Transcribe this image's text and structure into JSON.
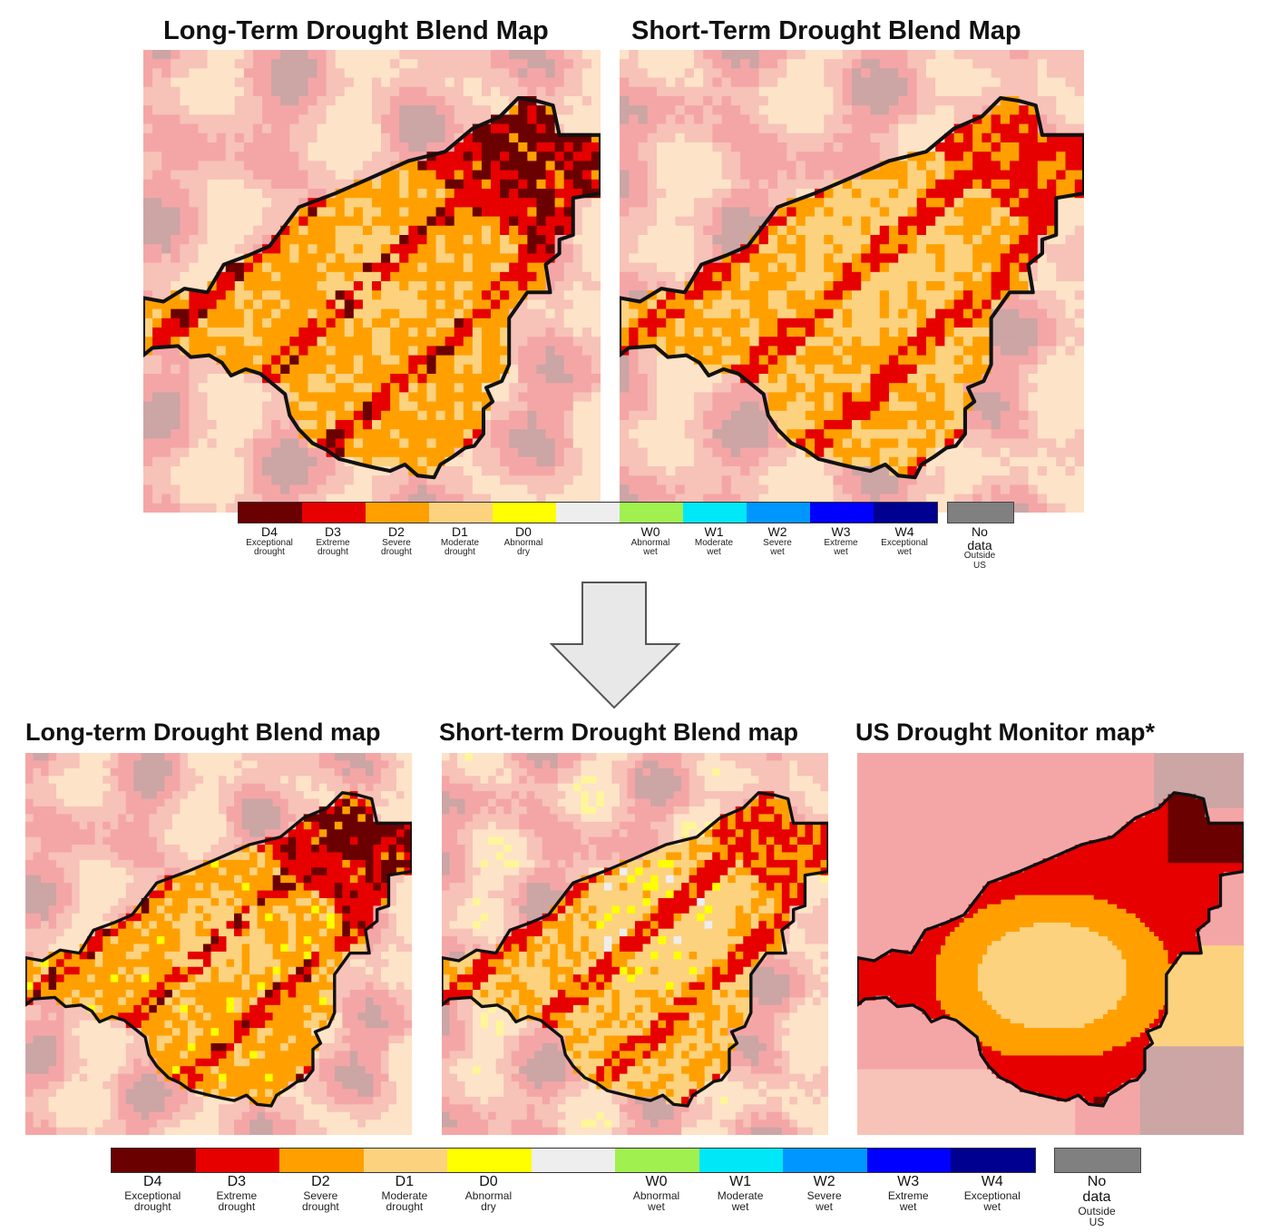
{
  "top": {
    "titles": [
      "Long-Term Drought Blend Map",
      "Short-Term Drought Blend Map"
    ]
  },
  "bottom": {
    "titles": [
      "Long-term Drought Blend map",
      "Short-term Drought Blend map",
      "US Drought Monitor map*"
    ]
  },
  "legend": {
    "classes": [
      {
        "code": "D4",
        "line1": "Exceptional",
        "line2": "drought",
        "color": "#6b0000"
      },
      {
        "code": "D3",
        "line1": "Extreme",
        "line2": "drought",
        "color": "#e60000"
      },
      {
        "code": "D2",
        "line1": "Severe",
        "line2": "drought",
        "color": "#ffa000"
      },
      {
        "code": "D1",
        "line1": "Moderate",
        "line2": "drought",
        "color": "#fcd27f"
      },
      {
        "code": "D0",
        "line1": "Abnormal",
        "line2": "dry",
        "color": "#ffff00"
      },
      {
        "code": "",
        "line1": "",
        "line2": "",
        "color": "#eeeeee"
      },
      {
        "code": "W0",
        "line1": "Abnormal",
        "line2": "wet",
        "color": "#a0f050"
      },
      {
        "code": "W1",
        "line1": "Moderate",
        "line2": "wet",
        "color": "#00e8f8"
      },
      {
        "code": "W2",
        "line1": "Severe",
        "line2": "wet",
        "color": "#0096ff"
      },
      {
        "code": "W3",
        "line1": "Extreme",
        "line2": "wet",
        "color": "#0000ff"
      },
      {
        "code": "W4",
        "line1": "Exceptional",
        "line2": "wet",
        "color": "#000090"
      }
    ],
    "no_data": {
      "code": "No data",
      "line1": "Outside",
      "line2": "US",
      "color": "#808080"
    }
  },
  "colors": {
    "outside_pink": "#f4a6a6",
    "outside_light_pink": "#f7c2b8",
    "outside_cream": "#fde3c8",
    "outside_mauve": "#cca5a5",
    "outline": "#111111",
    "arrow_fill": "#e8e8e8",
    "arrow_stroke": "#555555"
  },
  "icons": {
    "arrow": "down-arrow-icon"
  }
}
